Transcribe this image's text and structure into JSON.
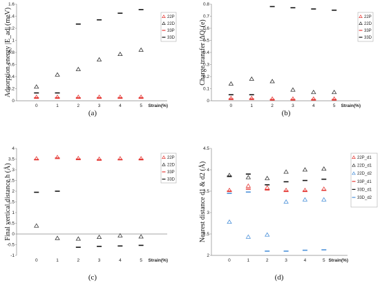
{
  "chart_data": [
    {
      "type": "scatter",
      "caption": "(a)",
      "ylabel": "Adsorption energy |E_ad| (meV)",
      "xlabel": "Strain(%)",
      "categories": [
        "0",
        "1",
        "2",
        "3",
        "4",
        "5"
      ],
      "ylim": [
        0,
        1.6
      ],
      "yticks": [
        "0",
        "0.2",
        "0.4",
        "0.6",
        "0.8",
        "1",
        "1.2",
        "1.4",
        "1.6"
      ],
      "series": [
        {
          "name": "22P",
          "marker": "triangle",
          "color": "#e53935",
          "values": [
            0.06,
            0.06,
            0.06,
            0.06,
            0.06,
            0.06
          ]
        },
        {
          "name": "22D",
          "marker": "triangle",
          "color": "#333333",
          "values": [
            0.23,
            0.43,
            0.52,
            0.68,
            0.77,
            0.84
          ]
        },
        {
          "name": "33P",
          "marker": "dash",
          "color": "#e53935",
          "values": [
            0.05,
            0.05,
            0.05,
            0.05,
            0.05,
            0.05
          ]
        },
        {
          "name": "33D",
          "marker": "dash",
          "color": "#111111",
          "values": [
            0.13,
            0.13,
            1.27,
            1.34,
            1.45,
            1.51
          ]
        }
      ]
    },
    {
      "type": "scatter",
      "caption": "(b)",
      "ylabel": "Charge transfer |ΔQ| (e)",
      "xlabel": "Strain(%)",
      "categories": [
        "0",
        "1",
        "2",
        "3",
        "4",
        "5"
      ],
      "ylim": [
        0,
        0.8
      ],
      "yticks": [
        "0",
        "0.1",
        "0.2",
        "0.3",
        "0.4",
        "0.5",
        "0.6",
        "0.7",
        "0.8"
      ],
      "series": [
        {
          "name": "22P",
          "marker": "triangle",
          "color": "#e53935",
          "values": [
            0.02,
            0.02,
            0.015,
            0.015,
            0.015,
            0.015
          ]
        },
        {
          "name": "22D",
          "marker": "triangle",
          "color": "#333333",
          "values": [
            0.14,
            0.18,
            0.16,
            0.09,
            0.07,
            0.07
          ]
        },
        {
          "name": "33P",
          "marker": "dash",
          "color": "#e53935",
          "values": [
            0.015,
            0.015,
            0.01,
            0.01,
            0.01,
            0.01
          ]
        },
        {
          "name": "33D",
          "marker": "dash",
          "color": "#111111",
          "values": [
            0.05,
            0.05,
            0.78,
            0.77,
            0.76,
            0.75
          ]
        }
      ]
    },
    {
      "type": "scatter",
      "caption": "(c)",
      "ylabel": "Final vertical distance h (Å)",
      "xlabel": "Strain(%)",
      "categories": [
        "0",
        "1",
        "2",
        "3",
        "4",
        "5"
      ],
      "ylim": [
        -1,
        4
      ],
      "yticks": [
        "-1",
        "-0.5",
        "0",
        "0.5",
        "1",
        "1.5",
        "2",
        "2.5",
        "3",
        "3.5",
        "4"
      ],
      "series": [
        {
          "name": "22P",
          "marker": "triangle",
          "color": "#e53935",
          "values": [
            3.52,
            3.58,
            3.53,
            3.5,
            3.52,
            3.52
          ]
        },
        {
          "name": "22D",
          "marker": "triangle",
          "color": "#333333",
          "values": [
            0.38,
            -0.2,
            -0.23,
            -0.15,
            -0.08,
            -0.13
          ]
        },
        {
          "name": "33P",
          "marker": "dash",
          "color": "#e53935",
          "values": [
            3.48,
            3.55,
            3.5,
            3.47,
            3.48,
            3.49
          ]
        },
        {
          "name": "33D",
          "marker": "dash",
          "color": "#111111",
          "values": [
            1.95,
            2.0,
            -0.62,
            -0.58,
            -0.56,
            -0.53
          ]
        }
      ]
    },
    {
      "type": "scatter",
      "caption": "(d)",
      "ylabel": "Nearest distance d1 & d2 (Å)",
      "xlabel": "Strain(%)",
      "categories": [
        "0",
        "1",
        "2",
        "3",
        "4",
        "5"
      ],
      "ylim": [
        2,
        4.5
      ],
      "yticks": [
        "2",
        "2.5",
        "3",
        "3.5",
        "4",
        "4.5"
      ],
      "series": [
        {
          "name": "22P_d1",
          "marker": "triangle",
          "color": "#e53935",
          "values": [
            3.52,
            3.62,
            3.58,
            3.52,
            3.52,
            3.55
          ]
        },
        {
          "name": "22D_d1",
          "marker": "triangle",
          "color": "#333333",
          "values": [
            3.87,
            3.82,
            3.8,
            3.95,
            4.0,
            4.02
          ]
        },
        {
          "name": "22D_d2",
          "marker": "triangle",
          "color": "#4a90d9",
          "values": [
            2.78,
            2.43,
            2.48,
            3.25,
            3.3,
            3.3
          ]
        },
        {
          "name": "33P_d1",
          "marker": "dash",
          "color": "#e53935",
          "values": [
            3.5,
            3.55,
            3.53,
            3.5,
            3.5,
            3.52
          ]
        },
        {
          "name": "33D_d1",
          "marker": "dash",
          "color": "#111111",
          "values": [
            3.85,
            3.9,
            3.65,
            3.72,
            3.75,
            3.78
          ]
        },
        {
          "name": "33D_d2",
          "marker": "dash",
          "color": "#4a90d9",
          "values": [
            3.45,
            3.48,
            2.1,
            2.1,
            2.12,
            2.13
          ]
        }
      ]
    }
  ]
}
